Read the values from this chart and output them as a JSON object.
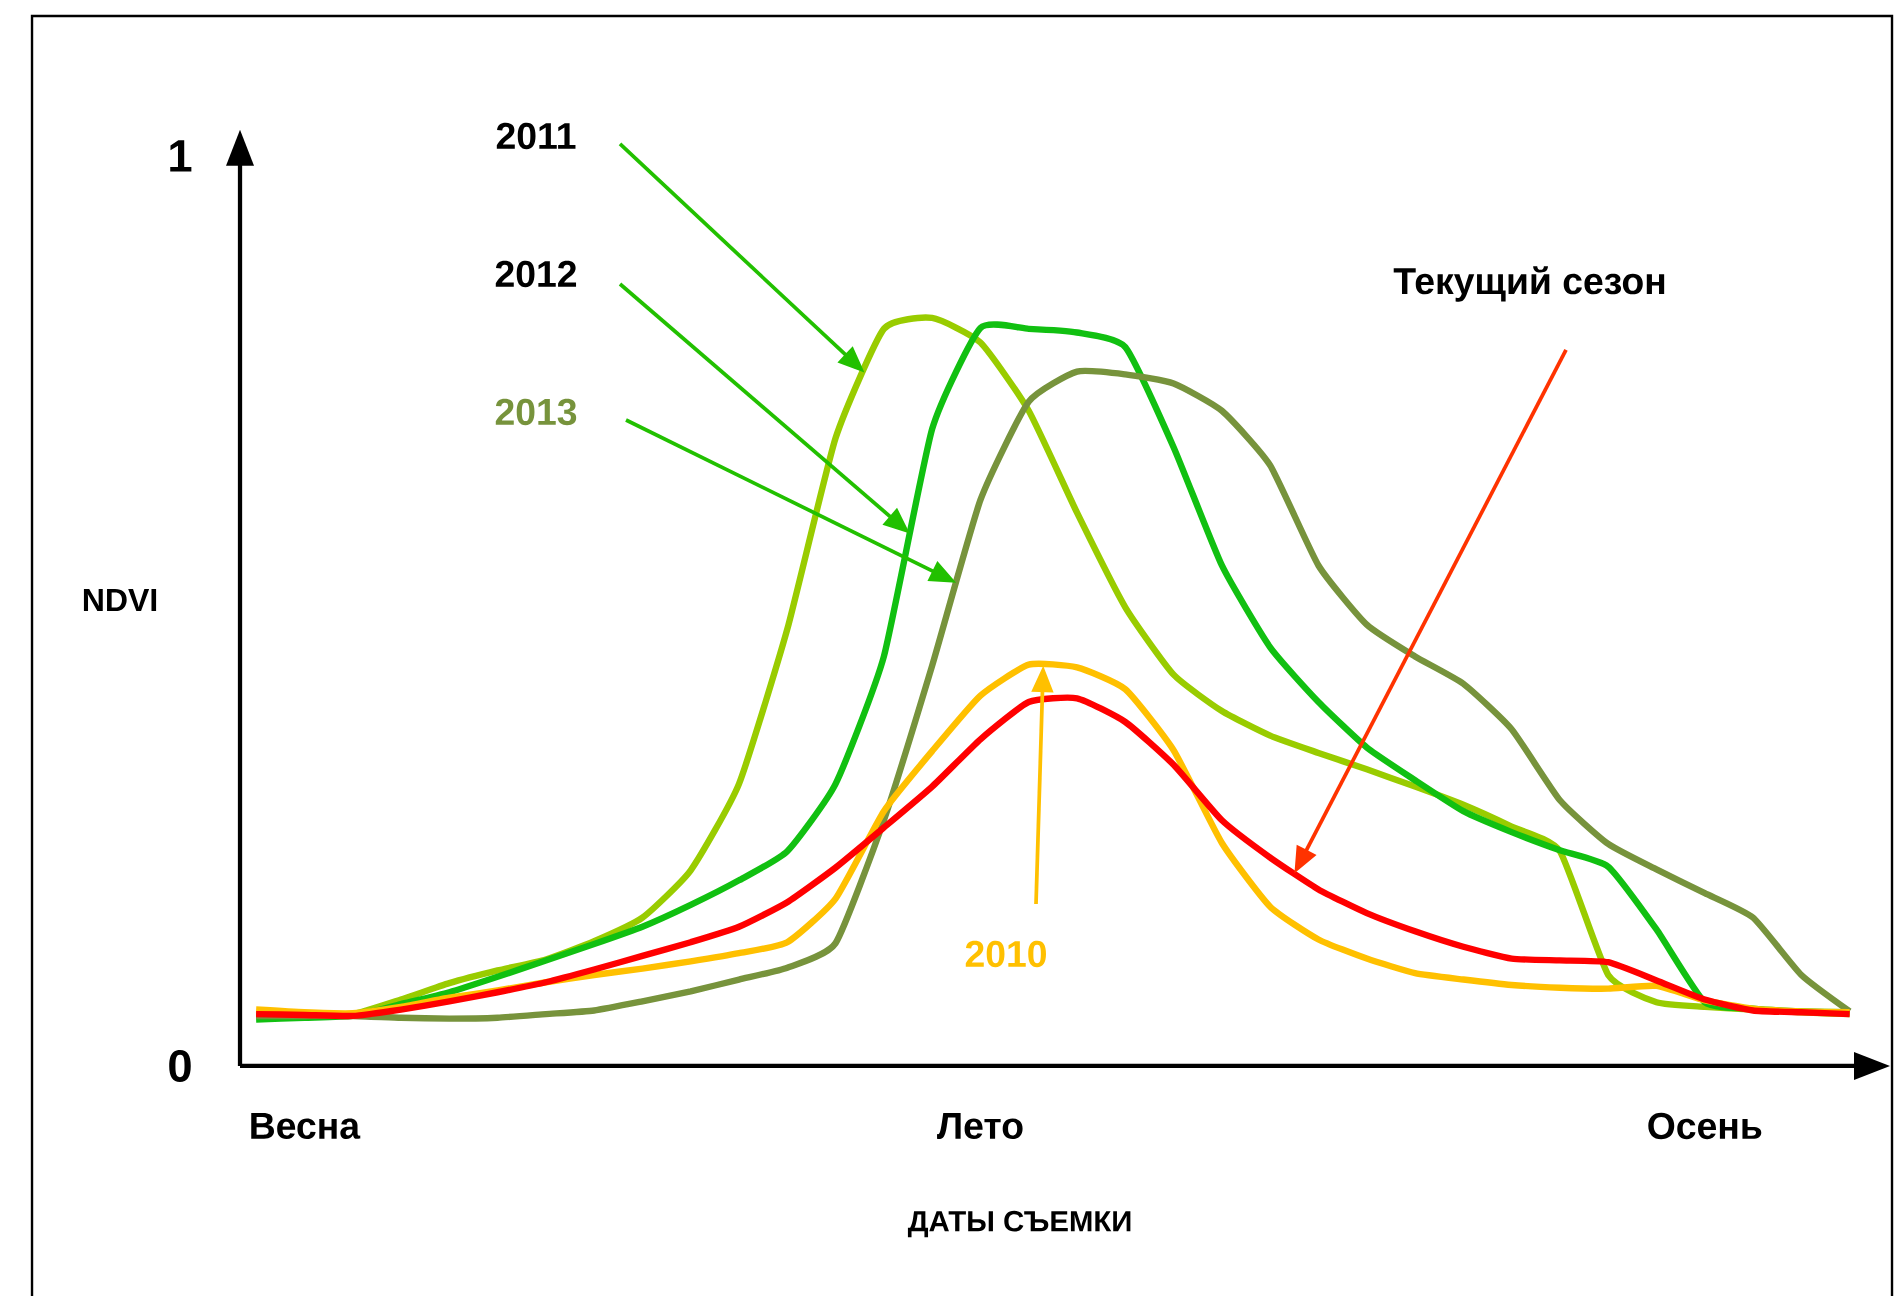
{
  "chart_data": {
    "type": "line",
    "xlabel": "ДАТЫ СЪЕМКИ",
    "ylabel": "NDVI",
    "categories": [
      null,
      "Весна",
      null,
      null,
      null,
      null,
      null,
      null,
      null,
      null,
      null,
      null,
      null,
      null,
      null,
      "Лето",
      null,
      null,
      null,
      null,
      null,
      null,
      null,
      null,
      null,
      null,
      null,
      null,
      null,
      null,
      "Осень",
      null,
      null,
      null
    ],
    "ylim": [
      0,
      1.02
    ],
    "yticks": [
      0,
      1
    ],
    "series": [
      {
        "name": "2011",
        "color": "#99cc00",
        "values": [
          0.057,
          0.057,
          0.057,
          0.073,
          0.091,
          0.105,
          0.117,
          0.137,
          0.163,
          0.215,
          0.31,
          0.48,
          0.69,
          0.81,
          0.822,
          0.795,
          0.72,
          0.608,
          0.504,
          0.43,
          0.39,
          0.363,
          0.344,
          0.326,
          0.307,
          0.287,
          0.263,
          0.236,
          0.1,
          0.07,
          0.065,
          0.062,
          0.059,
          0.057
        ]
      },
      {
        "name": "2012",
        "color": "#11c011",
        "values": [
          0.051,
          0.053,
          0.055,
          0.068,
          0.081,
          0.098,
          0.116,
          0.134,
          0.153,
          0.177,
          0.204,
          0.236,
          0.31,
          0.45,
          0.7,
          0.811,
          0.81,
          0.806,
          0.79,
          0.68,
          0.55,
          0.46,
          0.4,
          0.35,
          0.314,
          0.28,
          0.257,
          0.237,
          0.219,
          0.15,
          0.07,
          0.063,
          0.06,
          0.059
        ]
      },
      {
        "name": "2013",
        "color": "#77933c",
        "values": [
          0.055,
          0.055,
          0.055,
          0.053,
          0.052,
          0.053,
          0.057,
          0.061,
          0.071,
          0.082,
          0.095,
          0.108,
          0.135,
          0.27,
          0.44,
          0.622,
          0.73,
          0.763,
          0.76,
          0.75,
          0.72,
          0.66,
          0.55,
          0.485,
          0.45,
          0.42,
          0.37,
          0.292,
          0.244,
          0.216,
          0.19,
          0.163,
          0.1,
          0.06
        ]
      },
      {
        "name": "2010",
        "color": "#ffc000",
        "values": [
          0.062,
          0.059,
          0.058,
          0.065,
          0.075,
          0.083,
          0.092,
          0.1,
          0.107,
          0.115,
          0.124,
          0.136,
          0.184,
          0.28,
          0.346,
          0.407,
          0.441,
          0.438,
          0.414,
          0.347,
          0.245,
          0.175,
          0.139,
          0.118,
          0.102,
          0.095,
          0.089,
          0.086,
          0.085,
          0.088,
          0.072,
          0.063,
          0.06,
          0.059
        ]
      },
      {
        "name": "Текущий сезон",
        "color": "#ff0000",
        "values": [
          0.057,
          0.056,
          0.055,
          0.062,
          0.071,
          0.081,
          0.092,
          0.106,
          0.121,
          0.136,
          0.153,
          0.18,
          0.218,
          0.262,
          0.307,
          0.359,
          0.4,
          0.404,
          0.378,
          0.331,
          0.27,
          0.229,
          0.194,
          0.168,
          0.148,
          0.131,
          0.118,
          0.116,
          0.114,
          0.094,
          0.073,
          0.061,
          0.059,
          0.057
        ]
      }
    ]
  }
}
